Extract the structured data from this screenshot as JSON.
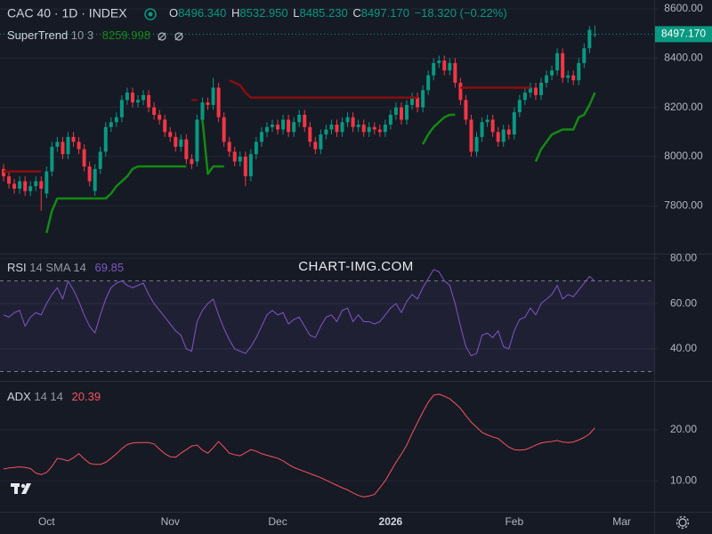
{
  "chart_data": {
    "type": "candlestick",
    "title": "CAC 40 · 1D · INDEX",
    "ohlc_keys": [
      "O",
      "H",
      "L",
      "C"
    ],
    "ohlc_labels": [
      "8496.340",
      "8532.950",
      "8485.230",
      "8497.170"
    ],
    "change_label": "−18.320 (−0.22%)",
    "watermark": "CHART-IMG.COM",
    "up_color": "#089981",
    "down_color": "#f23645",
    "grid": true,
    "last_price_line": true,
    "categories": [
      null,
      null,
      null,
      null,
      null,
      null,
      null,
      null,
      "Oct",
      null,
      null,
      null,
      null,
      null,
      null,
      null,
      null,
      null,
      null,
      null,
      null,
      null,
      null,
      null,
      null,
      null,
      null,
      null,
      null,
      null,
      null,
      "Nov",
      null,
      null,
      null,
      null,
      null,
      null,
      null,
      null,
      null,
      null,
      null,
      null,
      null,
      null,
      null,
      null,
      null,
      null,
      null,
      "Dec",
      null,
      null,
      null,
      null,
      null,
      null,
      null,
      null,
      null,
      null,
      null,
      null,
      null,
      null,
      null,
      null,
      null,
      null,
      null,
      null,
      "2026",
      null,
      null,
      null,
      null,
      null,
      null,
      null,
      null,
      null,
      null,
      null,
      null,
      null,
      null,
      null,
      null,
      null,
      null,
      null,
      null,
      null,
      null,
      "Feb",
      null,
      null,
      null,
      null,
      null,
      null,
      null,
      null,
      null,
      null,
      null,
      null,
      null,
      null,
      null,
      null,
      null,
      null,
      null,
      "Mar",
      null,
      null,
      null,
      null,
      null
    ],
    "open": [
      7950,
      7920,
      7890,
      7870,
      7900,
      7860,
      7880,
      7900,
      7850,
      7940,
      8040,
      8060,
      8010,
      8080,
      8060,
      8030,
      7960,
      7860,
      7950,
      8020,
      8120,
      8140,
      8160,
      8230,
      8260,
      8220,
      8230,
      8250,
      8200,
      8170,
      8150,
      8100,
      8080,
      8040,
      8070,
      7990,
      7980,
      8150,
      8220,
      8210,
      8280,
      8160,
      8060,
      8020,
      7980,
      8000,
      7920,
      8010,
      8060,
      8100,
      8120,
      8130,
      8110,
      8150,
      8100,
      8140,
      8170,
      8120,
      8060,
      8030,
      8090,
      8110,
      8130,
      8100,
      8140,
      8160,
      8120,
      8130,
      8100,
      8120,
      8110,
      8100,
      8130,
      8170,
      8200,
      8150,
      8210,
      8240,
      8200,
      8270,
      8330,
      8380,
      8390,
      8350,
      8380,
      8300,
      8230,
      8150,
      8020,
      8080,
      8140,
      8150,
      8100,
      8060,
      8110,
      8090,
      8180,
      8230,
      8260,
      8280,
      8250,
      8300,
      8330,
      8350,
      8420,
      8320,
      8330,
      8310,
      8380,
      8440,
      8496.34,
      null,
      null,
      null,
      null,
      null,
      null,
      null,
      null,
      null,
      null
    ],
    "high": [
      7970,
      7940,
      7910,
      7920,
      7920,
      7900,
      7920,
      7920,
      7960,
      8060,
      8080,
      8080,
      8100,
      8100,
      8080,
      8050,
      7980,
      7970,
      8040,
      8140,
      8160,
      8180,
      8250,
      8280,
      8280,
      8250,
      8270,
      8270,
      8220,
      8190,
      8170,
      8120,
      8100,
      8090,
      8090,
      8010,
      8170,
      8240,
      8240,
      8320,
      8300,
      8180,
      8080,
      8040,
      8020,
      8020,
      8030,
      8080,
      8120,
      8140,
      8150,
      8150,
      8170,
      8170,
      8160,
      8190,
      8190,
      8140,
      8080,
      8110,
      8130,
      8150,
      8150,
      8160,
      8180,
      8180,
      8150,
      8150,
      8140,
      8140,
      8130,
      8150,
      8190,
      8220,
      8220,
      8230,
      8260,
      8260,
      8290,
      8350,
      8400,
      8410,
      8410,
      8400,
      8400,
      8320,
      8250,
      8170,
      8100,
      8160,
      8170,
      8170,
      8120,
      8130,
      8130,
      8200,
      8250,
      8280,
      8300,
      8300,
      8320,
      8350,
      8370,
      8440,
      8440,
      8350,
      8350,
      8400,
      8460,
      8530,
      8532.95,
      null,
      null,
      null,
      null,
      null,
      null,
      null,
      null,
      null,
      null
    ],
    "low": [
      7900,
      7870,
      7850,
      7850,
      7840,
      7840,
      7860,
      7780,
      7830,
      7920,
      8020,
      7990,
      7990,
      8040,
      8010,
      7940,
      7880,
      7840,
      7930,
      8000,
      8100,
      8120,
      8140,
      8210,
      8200,
      8200,
      8210,
      8180,
      8150,
      8130,
      8080,
      8060,
      8020,
      8020,
      7970,
      7950,
      7960,
      8130,
      8190,
      8190,
      8140,
      8040,
      8000,
      7960,
      7960,
      7880,
      7900,
      7990,
      8040,
      8080,
      8100,
      8090,
      8090,
      8080,
      8080,
      8120,
      8100,
      8040,
      8010,
      8010,
      8070,
      8090,
      8080,
      8080,
      8120,
      8100,
      8100,
      8080,
      8080,
      8090,
      8080,
      8080,
      8110,
      8150,
      8130,
      8130,
      8190,
      8180,
      8180,
      8250,
      8310,
      8360,
      8330,
      8330,
      8280,
      8210,
      8130,
      8000,
      8000,
      8060,
      8120,
      8080,
      8040,
      8040,
      8070,
      8070,
      8160,
      8210,
      8240,
      8230,
      8230,
      8280,
      8310,
      8330,
      8300,
      8300,
      8290,
      8290,
      8360,
      8420,
      8485.23,
      null,
      null,
      null,
      null,
      null,
      null,
      null,
      null,
      null,
      null
    ],
    "close": [
      7920,
      7890,
      7870,
      7900,
      7860,
      7880,
      7900,
      7870,
      7940,
      8040,
      8060,
      8010,
      8080,
      8060,
      8030,
      7960,
      7900,
      7950,
      8020,
      8120,
      8140,
      8160,
      8230,
      8260,
      8220,
      8230,
      8250,
      8200,
      8170,
      8150,
      8100,
      8080,
      8040,
      8070,
      7990,
      7970,
      8150,
      8220,
      8210,
      8280,
      8160,
      8060,
      8020,
      7980,
      8000,
      7920,
      8010,
      8060,
      8100,
      8120,
      8130,
      8110,
      8150,
      8100,
      8140,
      8170,
      8120,
      8060,
      8030,
      8090,
      8110,
      8130,
      8100,
      8140,
      8160,
      8120,
      8130,
      8100,
      8120,
      8110,
      8100,
      8130,
      8170,
      8200,
      8150,
      8210,
      8240,
      8200,
      8270,
      8330,
      8380,
      8390,
      8350,
      8380,
      8300,
      8230,
      8150,
      8020,
      8080,
      8140,
      8150,
      8100,
      8060,
      8110,
      8090,
      8180,
      8230,
      8260,
      8280,
      8250,
      8300,
      8330,
      8350,
      8420,
      8320,
      8330,
      8310,
      8380,
      8440,
      8515,
      8497.17,
      null,
      null,
      null,
      null,
      null,
      null,
      null,
      null,
      null,
      null
    ],
    "ylim": [
      7606,
      8636
    ],
    "yticks": [
      {
        "value": 8600,
        "label": "8600.00"
      },
      {
        "value": 8400,
        "label": "8400.00"
      },
      {
        "value": 8200,
        "label": "8200.00"
      },
      {
        "value": 8000,
        "label": "8000.00"
      },
      {
        "value": 7800,
        "label": "7800.00"
      }
    ],
    "supertrend": {
      "name": "SuperTrend",
      "params": "10 3",
      "value_label": "8259.998",
      "up_color": "#138a13",
      "down_color": "#880e0e",
      "up_values": [
        null,
        null,
        null,
        null,
        null,
        null,
        null,
        null,
        7690,
        7780,
        7830,
        7830,
        7830,
        7830,
        7830,
        7830,
        7830,
        7830,
        7830,
        7830,
        7850,
        7880,
        7900,
        7920,
        7950,
        7960,
        7960,
        7960,
        7960,
        7960,
        7960,
        7960,
        7960,
        7960,
        7960,
        null,
        null,
        8150,
        7930,
        7960,
        7960,
        7960,
        null,
        null,
        null,
        null,
        null,
        null,
        null,
        null,
        null,
        null,
        null,
        null,
        null,
        null,
        null,
        null,
        null,
        null,
        null,
        null,
        null,
        null,
        null,
        null,
        null,
        null,
        null,
        null,
        null,
        null,
        null,
        null,
        null,
        null,
        null,
        null,
        8050,
        8090,
        8120,
        8140,
        8160,
        8170,
        8170,
        null,
        null,
        null,
        null,
        null,
        null,
        null,
        null,
        null,
        null,
        null,
        null,
        null,
        null,
        7980,
        8030,
        8060,
        8090,
        8100,
        8110,
        8110,
        8110,
        8160,
        8170,
        8210,
        8259.998,
        null,
        null,
        null,
        null,
        null,
        null,
        null,
        null,
        null,
        null
      ],
      "down_values": [
        7940,
        7940,
        7940,
        7940,
        7940,
        7940,
        7940,
        7940,
        null,
        null,
        null,
        null,
        null,
        null,
        null,
        null,
        null,
        null,
        null,
        null,
        null,
        null,
        null,
        null,
        null,
        null,
        null,
        null,
        null,
        null,
        null,
        null,
        null,
        null,
        null,
        8230,
        8230,
        null,
        null,
        null,
        null,
        null,
        8310,
        8300,
        8290,
        8260,
        8240,
        8240,
        8240,
        8240,
        8240,
        8240,
        8240,
        8240,
        8240,
        8240,
        8240,
        8240,
        8240,
        8240,
        8240,
        8240,
        8240,
        8240,
        8240,
        8240,
        8240,
        8240,
        8240,
        8240,
        8240,
        8240,
        8240,
        8240,
        8240,
        8240,
        8240,
        8240,
        null,
        null,
        null,
        null,
        null,
        null,
        null,
        8280,
        8280,
        8280,
        8280,
        8280,
        8280,
        8280,
        8280,
        8280,
        8280,
        8280,
        8280,
        8280,
        8280,
        null,
        null,
        null,
        null,
        null,
        null,
        null,
        null,
        null,
        null,
        null,
        null,
        null,
        null,
        null,
        null,
        null,
        null,
        null,
        null,
        null,
        null
      ]
    },
    "rsi": {
      "name": "RSI",
      "params": "14 SMA 14",
      "value_label": "69.85",
      "color": "#7e57c2",
      "bands": [
        70,
        30
      ],
      "ylim": [
        25.9,
        82
      ],
      "yticks": [
        {
          "value": 80,
          "label": "80.00"
        },
        {
          "value": 60,
          "label": "60.00"
        },
        {
          "value": 40,
          "label": "40.00"
        }
      ],
      "values": [
        55,
        54,
        56,
        57,
        50,
        54,
        56,
        55,
        60,
        64,
        67,
        62,
        70,
        66,
        61,
        55,
        50,
        47,
        55,
        62,
        67,
        69,
        70,
        68,
        67,
        68,
        69,
        64,
        60,
        57,
        54,
        51,
        48,
        46,
        40,
        39,
        52,
        57,
        60,
        62,
        55,
        49,
        44,
        40,
        39,
        38,
        41,
        45,
        50,
        55,
        57,
        55,
        56,
        51,
        53,
        54,
        50,
        46,
        45,
        50,
        54,
        55,
        52,
        57,
        58,
        52,
        55,
        52,
        52,
        51,
        52,
        55,
        58,
        60,
        56,
        61,
        64,
        62,
        67,
        71,
        75,
        74,
        70,
        68,
        60,
        50,
        41,
        37,
        38,
        46,
        47,
        45,
        48,
        41,
        40,
        48,
        53,
        54,
        58,
        55,
        60,
        62,
        64,
        68,
        62,
        64,
        63,
        66,
        69,
        72,
        69.85,
        null,
        null,
        null,
        null,
        null,
        null,
        null,
        null,
        null,
        null
      ]
    },
    "adx": {
      "name": "ADX",
      "params": "14 14",
      "value_label": "20.39",
      "color": "#f7525f",
      "ylim": [
        3.9,
        29.6
      ],
      "yticks": [
        {
          "value": 20,
          "label": "20.00"
        },
        {
          "value": 10,
          "label": "10.00"
        }
      ],
      "values": [
        12.3,
        12.5,
        12.6,
        12.7,
        12.6,
        12.4,
        11.5,
        11.2,
        11.6,
        12.8,
        14.4,
        14.2,
        13.9,
        14.5,
        15.3,
        14.3,
        13.4,
        13.2,
        13.2,
        13.6,
        14.4,
        15.3,
        16.3,
        17.1,
        17.4,
        17.5,
        17.5,
        17.5,
        17.2,
        16.2,
        15.3,
        14.7,
        14.6,
        15.4,
        16.1,
        16.8,
        17.0,
        16.0,
        15.4,
        16.5,
        17.7,
        16.6,
        15.4,
        15.1,
        14.9,
        15.5,
        16.1,
        15.8,
        15.3,
        15.0,
        14.7,
        14.4,
        13.9,
        13.2,
        12.6,
        12.2,
        11.8,
        11.4,
        11.0,
        10.6,
        10.1,
        9.6,
        9.1,
        8.6,
        8.2,
        7.6,
        7.1,
        6.8,
        7.0,
        7.3,
        8.6,
        10.0,
        11.8,
        13.6,
        15.2,
        17.0,
        19.3,
        21.4,
        23.5,
        25.4,
        26.8,
        27.0,
        26.6,
        26.1,
        25.2,
        24.2,
        22.8,
        21.5,
        20.5,
        19.5,
        19.0,
        18.6,
        18.3,
        17.4,
        16.6,
        16.1,
        16.0,
        16.1,
        16.5,
        17.0,
        17.4,
        17.6,
        17.7,
        17.9,
        17.6,
        17.5,
        17.6,
        18.0,
        18.5,
        19.2,
        20.39,
        null,
        null,
        null,
        null,
        null,
        null,
        null,
        null,
        null,
        null
      ]
    }
  }
}
